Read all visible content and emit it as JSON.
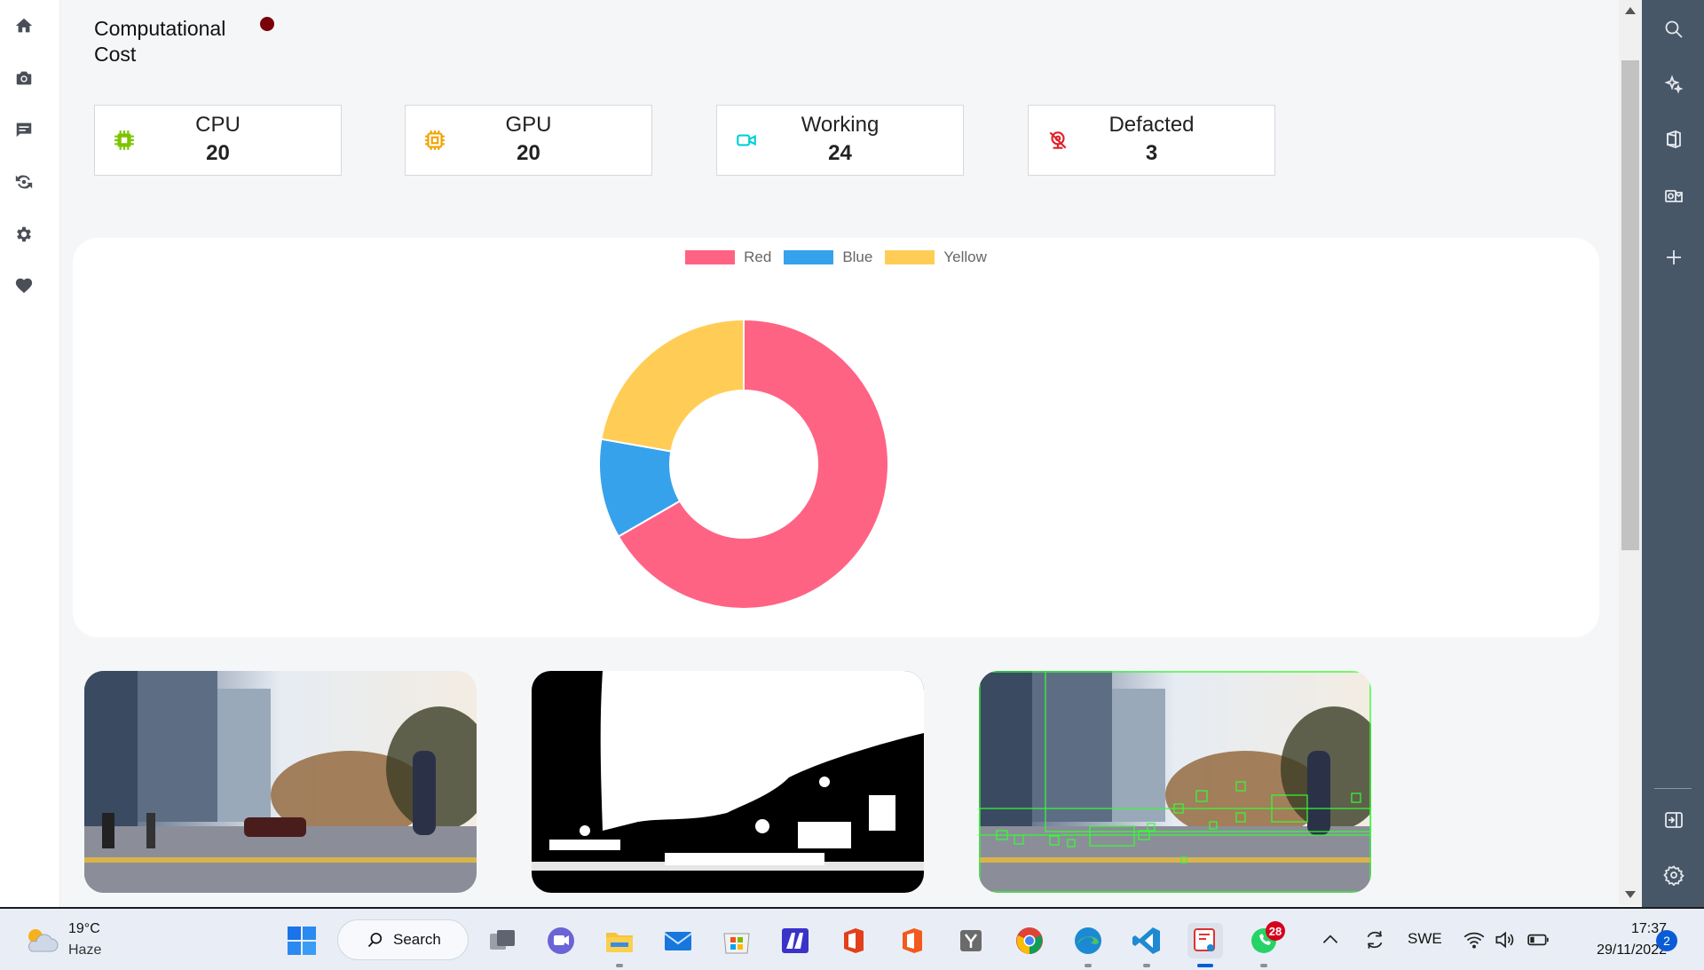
{
  "page": {
    "title": "Computational Cost",
    "status_color": "#7a0009"
  },
  "left_nav": {
    "items": [
      {
        "name": "home-icon"
      },
      {
        "name": "camera-icon"
      },
      {
        "name": "chat-icon"
      },
      {
        "name": "refresh-eye-icon"
      },
      {
        "name": "gear-icon"
      },
      {
        "name": "heart-icon"
      }
    ]
  },
  "stats": [
    {
      "label": "CPU",
      "value": "20",
      "icon": "cpu-icon",
      "color": "#7cc400"
    },
    {
      "label": "GPU",
      "value": "20",
      "icon": "gpu-icon",
      "color": "#f1a400"
    },
    {
      "label": "Working",
      "value": "24",
      "icon": "video-camera-icon",
      "color": "#00d0dc"
    },
    {
      "label": "Defacted",
      "value": "3",
      "icon": "camera-off-icon",
      "color": "#e0202a"
    }
  ],
  "chart_data": {
    "type": "pie",
    "donut": true,
    "title": "",
    "categories": [
      "Red",
      "Blue",
      "Yellow"
    ],
    "values": [
      300,
      50,
      100
    ],
    "colors": [
      "#ff6384",
      "#36a2eb",
      "#ffcd56"
    ],
    "legend": "top-center"
  },
  "images": [
    {
      "name": "original-frame-image"
    },
    {
      "name": "binary-mask-image"
    },
    {
      "name": "detection-overlay-image"
    }
  ],
  "right_sidebar": {
    "items": [
      {
        "name": "search-icon"
      },
      {
        "name": "copilot-sparkle-icon"
      },
      {
        "name": "office-icon"
      },
      {
        "name": "outlook-icon"
      },
      {
        "name": "add-icon"
      },
      {
        "name": "panel-collapse-icon"
      },
      {
        "name": "settings-icon"
      }
    ]
  },
  "taskbar": {
    "weather_temp": "19°C",
    "weather_desc": "Haze",
    "search_label": "Search",
    "whatsapp_badge": "28",
    "language": "SWE",
    "time": "17:37",
    "date": "29/11/2022",
    "notification_count": "2"
  }
}
